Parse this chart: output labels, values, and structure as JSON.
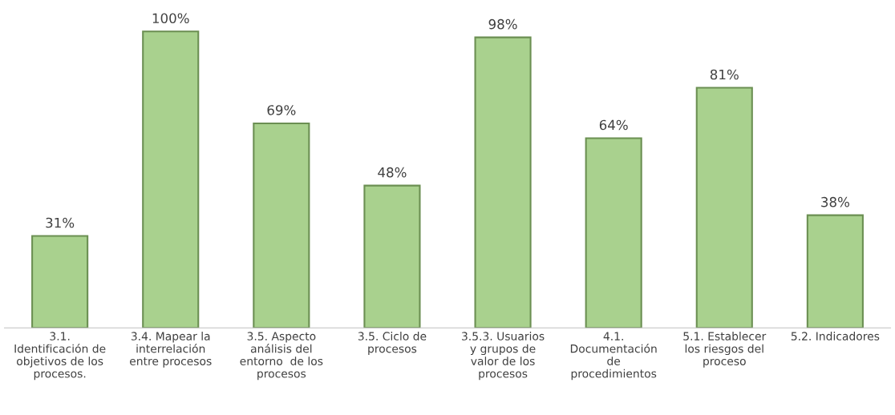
{
  "chart_data": {
    "type": "bar",
    "categories": [
      "3.1.\nIdentificación de\nobjetivos de los\nprocesos.",
      "3.4. Mapear la\ninterrelación\nentre procesos",
      "3.5. Aspecto\nanálisis del\nentorno  de los\nprocesos",
      "3.5. Ciclo de\nprocesos",
      "3.5.3. Usuarios\ny grupos de\nvalor de los\nprocesos",
      "4.1.\nDocumentación\nde\nprocedimientos",
      "5.1. Establecer\nlos riesgos del\nproceso",
      "5.2. Indicadores"
    ],
    "values": [
      31,
      100,
      69,
      48,
      98,
      64,
      81,
      38
    ],
    "value_labels": [
      "31%",
      "100%",
      "69%",
      "48%",
      "98%",
      "64%",
      "81%",
      "38%"
    ],
    "color": "#a9d18e",
    "grid": false,
    "legend": false
  }
}
